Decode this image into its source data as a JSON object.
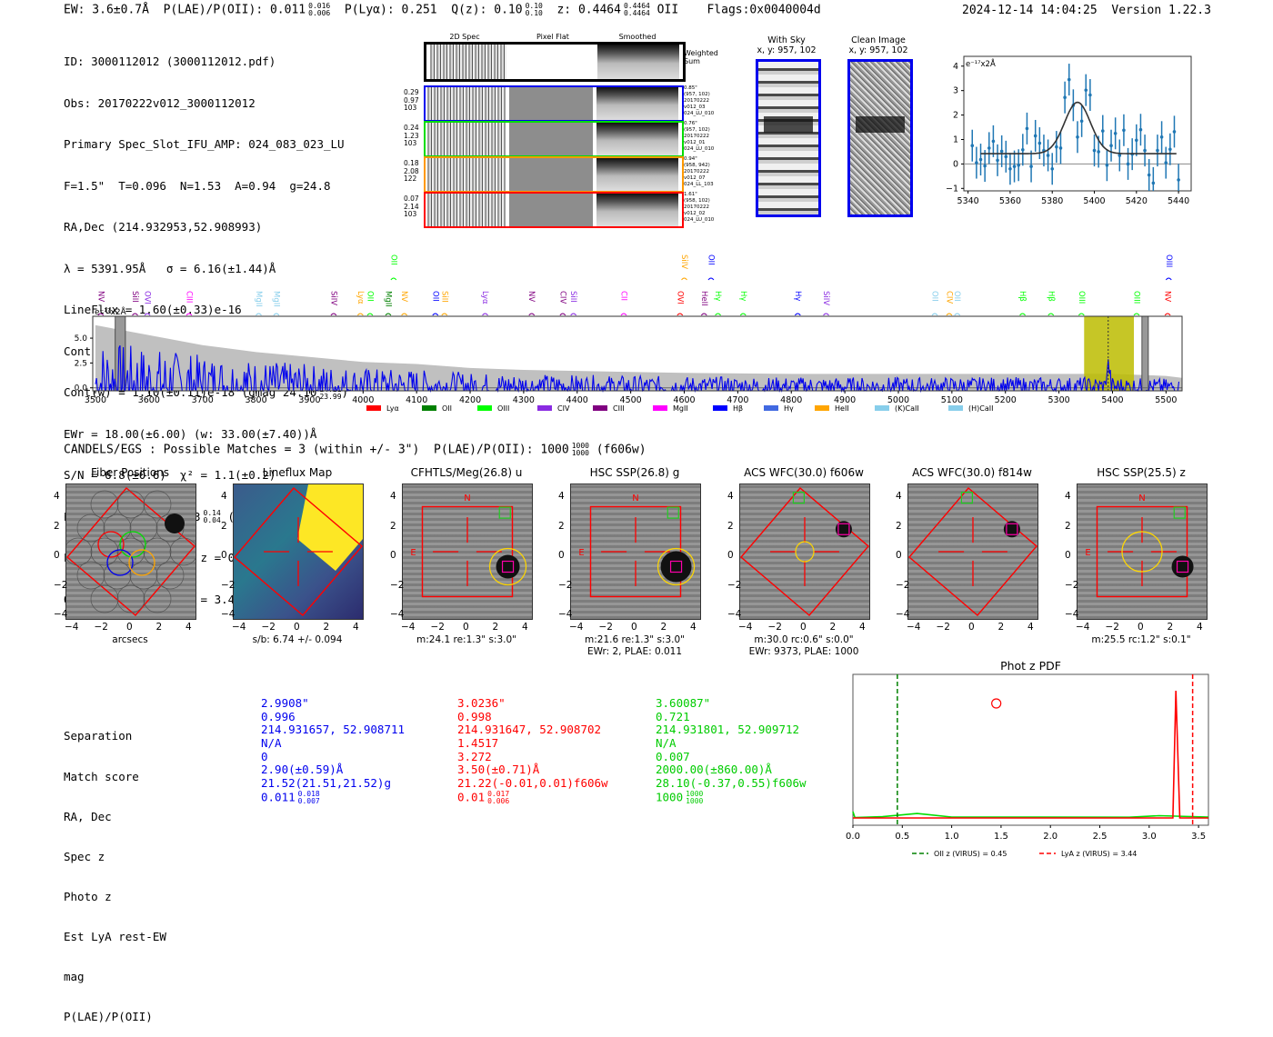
{
  "header": {
    "ew": "EW: 3.6±0.7Å",
    "plae_label": "P(LAE)/P(OII): 0.011",
    "plae_hi": "0.016",
    "plae_lo": "0.006",
    "plya": "P(Lyα): 0.251",
    "qz_label": "Q(z): 0.10",
    "qz_hi": "0.10",
    "qz_lo": "0.10",
    "z_label": "z: 0.4464",
    "z_hi": "0.4464",
    "z_lo": "0.4464",
    "z_line": "OII",
    "flags": "Flags:0x0040004d",
    "timestamp": "2024-12-14 14:04:25",
    "version": "Version 1.22.3"
  },
  "info": {
    "lines": [
      "ID: 3000112012 (3000112012.pdf)",
      "Obs: 20170222v012_3000112012",
      "Primary Spec_Slot_IFU_AMP: 024_083_023_LU",
      "F=1.5\"  T=0.096  N=1.53  A=0.94  g=24.8",
      "RA,Dec (214.932953,52.908993)",
      "λ = 5391.95Å   σ = 6.16(±1.44)Å",
      "LineFlux = 1.60(±0.33)e-16",
      "Cont(n) = 2.00(±0.55)e-18"
    ],
    "contw": "Cont(w) = 1.10(±0.11)e-18 (gmag 24.10",
    "contw_hi": "24.21",
    "contw_lo": "23.99",
    "contw_end": ")",
    "ewr": "EWr = 18.00(±6.00) (w: 33.00(±7.40))Å",
    "sn": "S/N = 6.8(±0.6)  χ² = 1.1(±0.2)",
    "plae": "P(LAE)/P(OII): 0.063",
    "plae_hi": "0.14",
    "plae_lo": "0.04",
    "plae_w": "(w: 0.472",
    "plae_w_hi": "0.693",
    "plae_w_lo": "0.308",
    "plae_w_end": ")",
    "lya_oii": "LyA z = 3.4354  OII z = 0.4464",
    "q_line": "Q(0.00) Lyα(1216) z = 3.4354  EW r = 32.9Å"
  },
  "spec2d": {
    "columns": [
      "2D Spec",
      "Pixel Flat",
      "Smoothed"
    ],
    "weighted_sum_label": "Weighted\nSum",
    "rows": [
      {
        "color": "#0000ee",
        "vals": [
          "0.29",
          "0.97",
          "103"
        ],
        "meta": "0.85\"\n(957, 102)\n20170222\nv012_03\n024_LU_010"
      },
      {
        "color": "#00dd00",
        "vals": [
          "0.24",
          "1.23",
          "103"
        ],
        "meta": "0.76\"\n(957, 102)\n20170222\nv012_01\n024_LU_010"
      },
      {
        "color": "#ff9900",
        "vals": [
          "0.18",
          "2.08",
          "122"
        ],
        "meta": "0.94\"\n(958, 942)\n20170222\nv012_07\n024_LL_103"
      },
      {
        "color": "#ff0000",
        "vals": [
          "0.07",
          "2.14",
          "103"
        ],
        "meta": "1.61\"\n(958, 102)\n20170222\nv012_02\n024_LU_010"
      }
    ]
  },
  "stamps": {
    "with_sky": {
      "title": "With Sky",
      "coords": "x, y: 957, 102"
    },
    "clean": {
      "title": "Clean Image",
      "coords": "x, y: 957, 102"
    }
  },
  "matches_header": {
    "text": "CANDELS/EGS : Possible Matches = 3 (within +/- 3\")  P(LAE)/P(OII): 1000",
    "hi": "1000",
    "lo": "1000",
    "end": "(f606w)"
  },
  "cutouts": [
    {
      "title": "Fiber Positions",
      "cap1": "arcsecs",
      "cap2": ""
    },
    {
      "title": "Lineflux Map",
      "cap1": "s/b: 6.74 +/- 0.094",
      "cap2": ""
    },
    {
      "title": "CFHTLS/Meg(26.8) u",
      "cap1": "m:24.1  re:1.3\"  s:3.0\"",
      "cap2": ""
    },
    {
      "title": "HSC SSP(26.8) g",
      "cap1": "m:21.6  re:1.3\"  s:3.0\"",
      "cap2": "EWr: 2, PLAE: 0.011"
    },
    {
      "title": "ACS WFC(30.0) f606w",
      "cap1": "m:30.0 rc:0.6\"  s:0.0\"",
      "cap2": "EWr: 9373, PLAE: 1000"
    },
    {
      "title": "ACS WFC(30.0) f814w",
      "cap1": "",
      "cap2": ""
    },
    {
      "title": "HSC SSP(25.5) z",
      "cap1": "m:25.5 rc:1.2\"  s:0.1\"",
      "cap2": ""
    }
  ],
  "cutout_ticks": [
    "4",
    "2",
    "0",
    "−2",
    "−4"
  ],
  "cutout_xticks": [
    "−4",
    "−2",
    "0",
    "2",
    "4"
  ],
  "compass": {
    "n": "N",
    "e": "E"
  },
  "match_table": {
    "labels": [
      "Separation",
      "Match score",
      "RA, Dec",
      "Spec z",
      "Photo z",
      "Est LyA rest-EW",
      "mag",
      "P(LAE)/P(OII)"
    ],
    "columns": [
      {
        "color": "#0000ee",
        "vals": [
          "2.9908\"",
          "0.996",
          "214.931657, 52.908711",
          "N/A",
          "0",
          "2.90(±0.59)Å",
          "21.52(21.51,21.52)g"
        ],
        "plae": "0.011",
        "plae_hi": "0.018",
        "plae_lo": "0.007"
      },
      {
        "color": "#ff0000",
        "vals": [
          "3.0236\"",
          "0.998",
          "214.931647, 52.908702",
          "1.4517",
          "3.272",
          "3.50(±0.71)Å",
          "21.22(-0.01,0.01)f606w"
        ],
        "plae": "0.01",
        "plae_hi": "0.017",
        "plae_lo": "0.006"
      },
      {
        "color": "#00cc00",
        "vals": [
          "3.60087\"",
          "0.721",
          "214.931801, 52.909712",
          "N/A",
          "0.007",
          "2000.00(±860.00)Å",
          "28.10(-0.37,0.55)f606w"
        ],
        "plae": "1000",
        "plae_hi": "1000",
        "plae_lo": "1000"
      }
    ]
  },
  "chart_data": [
    {
      "id": "line-fit",
      "type": "scatter",
      "title": "",
      "ylabel_inset": "e⁻¹⁷x2Å",
      "xlim": [
        5338,
        5446
      ],
      "ylim": [
        -1.1,
        4.4
      ],
      "xticks": [
        5340,
        5360,
        5380,
        5400,
        5420,
        5440
      ],
      "yticks": [
        -1,
        0,
        1,
        2,
        3,
        4
      ],
      "points": [
        {
          "x": 5342,
          "y": 0.75,
          "e": 0.65
        },
        {
          "x": 5344,
          "y": 0.05,
          "e": 0.65
        },
        {
          "x": 5346,
          "y": 0.18,
          "e": 0.65
        },
        {
          "x": 5348,
          "y": -0.08,
          "e": 0.65
        },
        {
          "x": 5350,
          "y": 0.65,
          "e": 0.65
        },
        {
          "x": 5352,
          "y": 0.93,
          "e": 0.65
        },
        {
          "x": 5354,
          "y": 0.15,
          "e": 0.65
        },
        {
          "x": 5356,
          "y": 0.52,
          "e": 0.65
        },
        {
          "x": 5358,
          "y": 0.3,
          "e": 0.65
        },
        {
          "x": 5360,
          "y": -0.2,
          "e": 0.65
        },
        {
          "x": 5362,
          "y": -0.1,
          "e": 0.65
        },
        {
          "x": 5364,
          "y": -0.05,
          "e": 0.65
        },
        {
          "x": 5366,
          "y": 0.58,
          "e": 0.65
        },
        {
          "x": 5368,
          "y": 1.45,
          "e": 0.65
        },
        {
          "x": 5370,
          "y": -0.1,
          "e": 0.65
        },
        {
          "x": 5372,
          "y": 1.15,
          "e": 0.65
        },
        {
          "x": 5374,
          "y": 0.85,
          "e": 0.65
        },
        {
          "x": 5376,
          "y": 0.55,
          "e": 0.65
        },
        {
          "x": 5378,
          "y": 0.35,
          "e": 0.65
        },
        {
          "x": 5380,
          "y": -0.2,
          "e": 0.65
        },
        {
          "x": 5382,
          "y": 0.7,
          "e": 0.65
        },
        {
          "x": 5384,
          "y": 0.65,
          "e": 0.65
        },
        {
          "x": 5386,
          "y": 2.72,
          "e": 0.65
        },
        {
          "x": 5388,
          "y": 3.45,
          "e": 0.65
        },
        {
          "x": 5390,
          "y": 2.4,
          "e": 0.65
        },
        {
          "x": 5392,
          "y": 1.1,
          "e": 0.65
        },
        {
          "x": 5394,
          "y": 1.75,
          "e": 0.65
        },
        {
          "x": 5396,
          "y": 3.02,
          "e": 0.65
        },
        {
          "x": 5398,
          "y": 2.82,
          "e": 0.65
        },
        {
          "x": 5400,
          "y": 0.55,
          "e": 0.65
        },
        {
          "x": 5402,
          "y": 0.5,
          "e": 0.65
        },
        {
          "x": 5404,
          "y": 1.35,
          "e": 0.65
        },
        {
          "x": 5406,
          "y": -0.05,
          "e": 0.65
        },
        {
          "x": 5408,
          "y": 0.75,
          "e": 0.65
        },
        {
          "x": 5410,
          "y": 1.25,
          "e": 0.65
        },
        {
          "x": 5412,
          "y": 0.35,
          "e": 0.65
        },
        {
          "x": 5414,
          "y": 1.38,
          "e": 0.65
        },
        {
          "x": 5416,
          "y": 0.0,
          "e": 0.65
        },
        {
          "x": 5418,
          "y": 0.4,
          "e": 0.65
        },
        {
          "x": 5420,
          "y": 0.97,
          "e": 0.65
        },
        {
          "x": 5422,
          "y": 1.4,
          "e": 0.65
        },
        {
          "x": 5424,
          "y": 0.55,
          "e": 0.65
        },
        {
          "x": 5426,
          "y": -0.45,
          "e": 0.65
        },
        {
          "x": 5428,
          "y": -0.78,
          "e": 0.65
        },
        {
          "x": 5430,
          "y": 0.55,
          "e": 0.65
        },
        {
          "x": 5432,
          "y": 1.1,
          "e": 0.65
        },
        {
          "x": 5434,
          "y": 0.05,
          "e": 0.65
        },
        {
          "x": 5436,
          "y": 0.6,
          "e": 0.65
        },
        {
          "x": 5438,
          "y": 1.32,
          "e": 0.65
        },
        {
          "x": 5440,
          "y": -0.65,
          "e": 0.65
        }
      ],
      "fit": {
        "type": "gaussian",
        "mu": 5392,
        "sigma": 6.16,
        "amp": 2.1,
        "baseline": 0.42,
        "xrange": [
          5346,
          5439
        ]
      }
    },
    {
      "id": "full-spectrum",
      "type": "line",
      "ylabel_inset": "e⁻¹⁷x2Å",
      "xlim": [
        3495,
        5530
      ],
      "ylim": [
        -0.3,
        7.2
      ],
      "xticks": [
        3500,
        3600,
        3700,
        3800,
        3900,
        4000,
        4100,
        4200,
        4300,
        4400,
        4500,
        4600,
        4700,
        4800,
        4900,
        5000,
        5100,
        5200,
        5300,
        5400,
        5500
      ],
      "yticks": [
        0.0,
        2.5,
        5.0
      ],
      "highlight_band": [
        5347,
        5440
      ],
      "line_marker": 5392,
      "masked_bands": [
        [
          3537,
          3556
        ],
        [
          5455,
          5467
        ]
      ],
      "noise_envelope": [
        [
          3500,
          6.3
        ],
        [
          3600,
          5.3
        ],
        [
          3700,
          4.3
        ],
        [
          3800,
          3.6
        ],
        [
          3900,
          3.1
        ],
        [
          4000,
          2.6
        ],
        [
          4100,
          2.4
        ],
        [
          4200,
          2.0
        ],
        [
          4300,
          1.8
        ],
        [
          4400,
          1.7
        ],
        [
          4500,
          1.6
        ],
        [
          4600,
          1.5
        ],
        [
          4800,
          1.4
        ],
        [
          5000,
          1.4
        ],
        [
          5200,
          1.4
        ],
        [
          5400,
          1.4
        ],
        [
          5500,
          1.2
        ],
        [
          5530,
          1.0
        ]
      ],
      "legend": [
        {
          "label": "Lyα",
          "color": "#ff0000"
        },
        {
          "label": "OII",
          "color": "#008000"
        },
        {
          "label": "OIII",
          "color": "#00ff00"
        },
        {
          "label": "CIV",
          "color": "#8a2be2"
        },
        {
          "label": "CIII",
          "color": "#800080"
        },
        {
          "label": "MgII",
          "color": "#ff00ff"
        },
        {
          "label": "Hβ",
          "color": "#0000ff"
        },
        {
          "label": "Hγ",
          "color": "#4169e1"
        },
        {
          "label": "HeII",
          "color": "#ffa500"
        },
        {
          "label": "(K)CaII",
          "color": "#87ceeb"
        },
        {
          "label": "(H)CaII",
          "color": "#87ceeb"
        }
      ],
      "line_ids_low": [
        {
          "x": 3510,
          "label": "NV",
          "color": "#800080"
        },
        {
          "x": 3574,
          "label": "SiII",
          "color": "#800080"
        },
        {
          "x": 3597,
          "label": "OVI",
          "color": "#8a2be2"
        },
        {
          "x": 3675,
          "label": "CIII",
          "color": "#ff00ff"
        },
        {
          "x": 3805,
          "label": "MgII",
          "color": "#87ceeb"
        },
        {
          "x": 3838,
          "label": "MgII",
          "color": "#87ceeb"
        },
        {
          "x": 3945,
          "label": "SiIV",
          "color": "#800080"
        },
        {
          "x": 3995,
          "label": "Lyα",
          "color": "#ffa500"
        },
        {
          "x": 4013,
          "label": "OII",
          "color": "#00ff00"
        },
        {
          "x": 4047,
          "label": "MgII",
          "color": "#008000"
        },
        {
          "x": 4077,
          "label": "NV",
          "color": "#ffa500"
        },
        {
          "x": 4135,
          "label": "OII",
          "color": "#0000ff"
        },
        {
          "x": 4152,
          "label": "SiII",
          "color": "#ffa500"
        },
        {
          "x": 4228,
          "label": "Lyα",
          "color": "#8a2be2"
        },
        {
          "x": 4315,
          "label": "NV",
          "color": "#800080"
        },
        {
          "x": 4373,
          "label": "CIV",
          "color": "#800080"
        },
        {
          "x": 4393,
          "label": "SiII",
          "color": "#8a2be2"
        },
        {
          "x": 4487,
          "label": "CII",
          "color": "#ff00ff"
        },
        {
          "x": 4592,
          "label": "OVI",
          "color": "#ff0000"
        },
        {
          "x": 4637,
          "label": "HeII",
          "color": "#800080"
        },
        {
          "x": 4663,
          "label": "Hγ",
          "color": "#00ff00"
        },
        {
          "x": 4710,
          "label": "Hγ",
          "color": "#00ff00"
        },
        {
          "x": 4812,
          "label": "Hγ",
          "color": "#0000ff"
        },
        {
          "x": 4865,
          "label": "SiIV",
          "color": "#8a2be2"
        },
        {
          "x": 5068,
          "label": "OII",
          "color": "#87ceeb"
        },
        {
          "x": 5095,
          "label": "CIV",
          "color": "#ffa500"
        },
        {
          "x": 5110,
          "label": "OII",
          "color": "#87ceeb"
        },
        {
          "x": 5232,
          "label": "Hβ",
          "color": "#00ff00"
        },
        {
          "x": 5285,
          "label": "Hβ",
          "color": "#00ff00"
        },
        {
          "x": 5342,
          "label": "OIII",
          "color": "#00ff00"
        },
        {
          "x": 5445,
          "label": "OIII",
          "color": "#00ff00"
        },
        {
          "x": 5503,
          "label": "NV",
          "color": "#ff0000"
        }
      ],
      "line_ids_high": [
        {
          "x": 4057,
          "label": "OII",
          "color": "#00ff00"
        },
        {
          "x": 4600,
          "label": "SiIV",
          "color": "#ffa500"
        },
        {
          "x": 4650,
          "label": "OII",
          "color": "#0000ff"
        },
        {
          "x": 5505,
          "label": "OIII",
          "color": "#0000ff"
        }
      ]
    },
    {
      "id": "phot-z-pdf",
      "type": "line",
      "title": "Phot z PDF",
      "xlim": [
        0.0,
        3.6
      ],
      "xticks": [
        0.0,
        0.5,
        1.0,
        1.5,
        2.0,
        2.5,
        3.0,
        3.5
      ],
      "series": [
        {
          "name": "green-pdf",
          "color": "#00dd00",
          "points": [
            [
              0,
              0.05
            ],
            [
              0.02,
              0.003
            ],
            [
              0.3,
              0.01
            ],
            [
              0.65,
              0.035
            ],
            [
              1.0,
              0.007
            ],
            [
              2.8,
              0.006
            ],
            [
              3.1,
              0.018
            ],
            [
              3.6,
              0.007
            ]
          ]
        },
        {
          "name": "red-pdf",
          "color": "#ff0000",
          "points": [
            [
              0,
              0.0
            ],
            [
              3.24,
              0.0
            ],
            [
              3.27,
              1.0
            ],
            [
              3.31,
              0.0
            ],
            [
              3.6,
              0.0
            ]
          ]
        }
      ],
      "markers": [
        {
          "x": 1.4517,
          "y": 0.9,
          "shape": "open-circle",
          "color": "#ff0000"
        }
      ],
      "vlines": [
        {
          "x": 0.45,
          "color": "#008000",
          "label": "OII z (VIRUS) = 0.45"
        },
        {
          "x": 3.44,
          "color": "#ff0000",
          "label": "LyA z (VIRUS) = 3.44"
        }
      ]
    }
  ]
}
